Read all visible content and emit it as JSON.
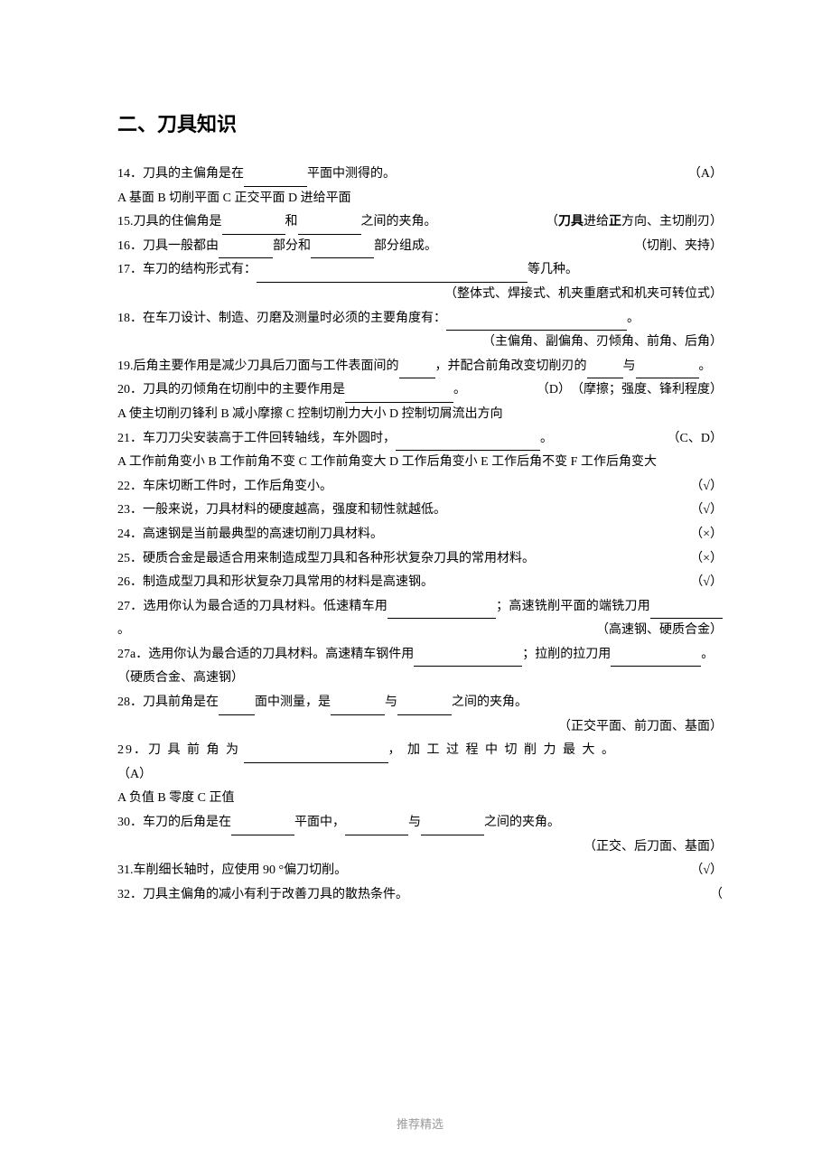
{
  "title": "二、刀具知识",
  "q14": {
    "num": "14．",
    "text_before": "刀具的主偏角是在",
    "text_after": "平面中测得的。",
    "answer": "（A）",
    "options": "A  基面       B  切削平面     C  正交平面    D  进给平面"
  },
  "q15": {
    "num": "15.",
    "t1": "刀具的住偏角是",
    "t2": "和",
    "t3": "之间的夹角。",
    "answer_pre": "（",
    "answer_bold": "刀具",
    "answer_mid1": "进给",
    "answer_bold2": "正",
    "answer_mid2": "方向、主切削刃）"
  },
  "q16": {
    "num": "16．",
    "t1": "刀具一般都由",
    "t2": "部分和",
    "t3": "部分组成。",
    "answer": "（切削、夹持）"
  },
  "q17": {
    "num": "17．",
    "t1": "车刀的结构形式有：",
    "t2": "等几种。",
    "answer": "（整体式、焊接式、机夹重磨式和机夹可转位式）"
  },
  "q18": {
    "num": "18．",
    "t1": "在车刀设计、制造、刃磨及测量时必须的主要角度有：",
    "t2": "。",
    "answer": "（主偏角、副偏角、刃倾角、前角、后角）"
  },
  "q19": {
    "num": "19.",
    "t1": "后角主要作用是减少刀具后刀面与工件表面间的",
    "t2": "，并配合前角改变切削刃的",
    "t3": "与",
    "t4": "。",
    "answer": "（摩擦；强度、锋利程度）"
  },
  "q20": {
    "num": "20．",
    "t1": "刀具的刃倾角在切削中的主要作用是",
    "t2": "。",
    "answer": "（D）",
    "options": "A  使主切削刃锋利      B  减小摩擦      C  控制切削力大小    D  控制切屑流出方向"
  },
  "q21": {
    "num": "21．",
    "t1": "车刀刀尖安装高于工件回转轴线，车外圆时，",
    "t2": "。",
    "answer": "（C、D）",
    "options1": "A  工作前角变小      B  工作前角不变      C  工作前角变大    D  工作后角变小     E  工作后角不变      F  工作后角变大"
  },
  "q22": {
    "num": "22．",
    "text": "车床切断工件时，工作后角变小。",
    "answer": "（√）"
  },
  "q23": {
    "num": "23．",
    "text": "一般来说，刀具材料的硬度越高，强度和韧性就越低。",
    "answer": "（√）"
  },
  "q24": {
    "num": "24．",
    "text": "高速钢是当前最典型的高速切削刀具材料。",
    "answer": "（×）"
  },
  "q25": {
    "num": "25．",
    "text": "硬质合金是最适合用来制造成型刀具和各种形状复杂刀具的常用材料。",
    "answer": "（×）"
  },
  "q26": {
    "num": "26．",
    "text": "制造成型刀具和形状复杂刀具常用的材料是高速钢。",
    "answer": "（√）"
  },
  "q27": {
    "num": "27．",
    "t1": "选用你认为最合适的刀具材料。低速精车用",
    "t2": "；高速铣削平面的端铣刀用",
    "t3": "。",
    "answer": "（高速钢、硬质合金）"
  },
  "q27a": {
    "num": "27a．",
    "t1": "选用你认为最合适的刀具材料。高速精车钢件用",
    "t2": "；拉削的拉刀用",
    "t3": "。",
    "answer": "（硬质合金、高速钢）"
  },
  "q28": {
    "num": "28．",
    "t1": "刀具前角是在",
    "t2": "面中测量，是",
    "t3": "与",
    "t4": "之间的夹角。",
    "answer": "（正交平面、前刀面、基面）"
  },
  "q29": {
    "num": "29．",
    "t1": "刀 具 前 角 为",
    "t2": "， 加 工 过 程 中 切 削 力 最 大 。",
    "answer": "（A）",
    "options": "A  负值      B  零度     C  正值"
  },
  "q30": {
    "num": "30．",
    "t1": "车刀的后角是在",
    "t2": "平面中，",
    "t3": "与",
    "t4": "之间的夹角。",
    "answer": "（正交、后刀面、基面）"
  },
  "q31": {
    "num": "31.",
    "text": "车削细长轴时，应使用 90 °偏刀切削。",
    "answer": "（√）"
  },
  "q32": {
    "num": "32．",
    "text": "刀具主偏角的减小有利于改善刀具的散热条件。",
    "answer": "（"
  },
  "footer": "推荐精选"
}
